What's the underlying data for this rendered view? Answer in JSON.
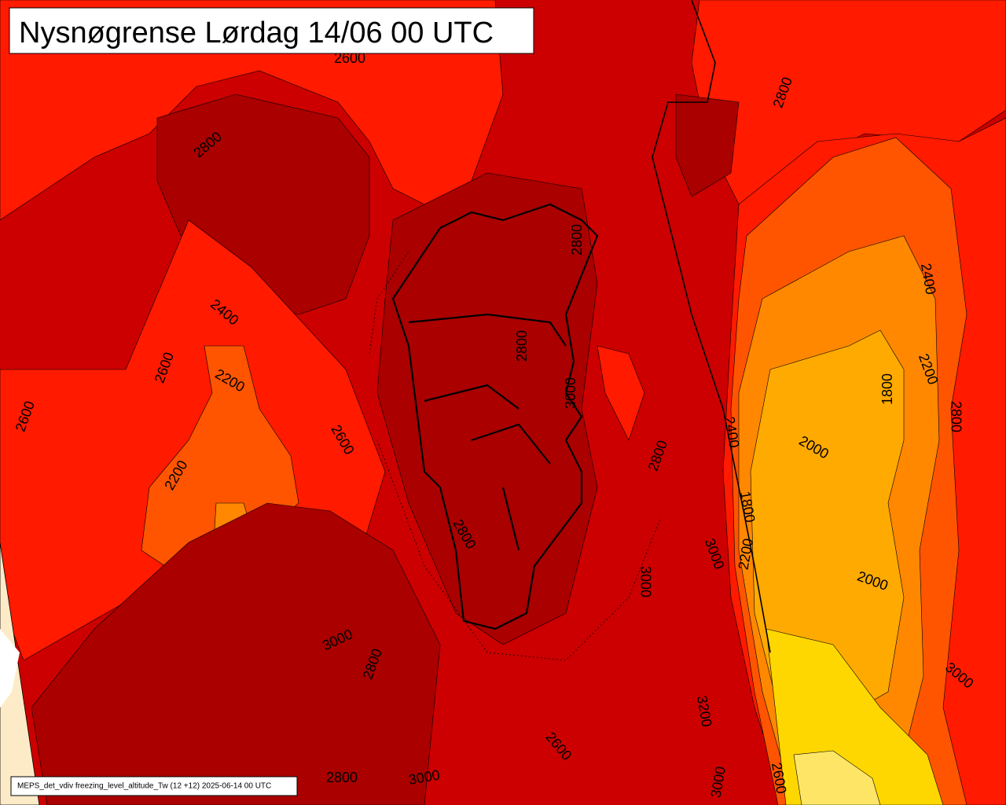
{
  "header": {
    "title": "Nysnøgrense Lørdag 14/06 00 UTC"
  },
  "footer": {
    "text": "MEPS_det_vdiv freezing_level_altitude_Tw (12 +12) 2025-06-14 00 UTC"
  },
  "contour_labels": [
    "2600",
    "2800",
    "2400",
    "2600",
    "2200",
    "2600",
    "2600",
    "2200",
    "2800",
    "2800",
    "3000",
    "2400",
    "2000",
    "1800",
    "2200",
    "2400",
    "2800",
    "2800",
    "1800",
    "2200",
    "3000",
    "2000",
    "3000",
    "3000",
    "2800",
    "3200",
    "2600",
    "2800",
    "3000",
    "3000",
    "2600",
    "2800",
    "3000",
    "2800"
  ]
}
